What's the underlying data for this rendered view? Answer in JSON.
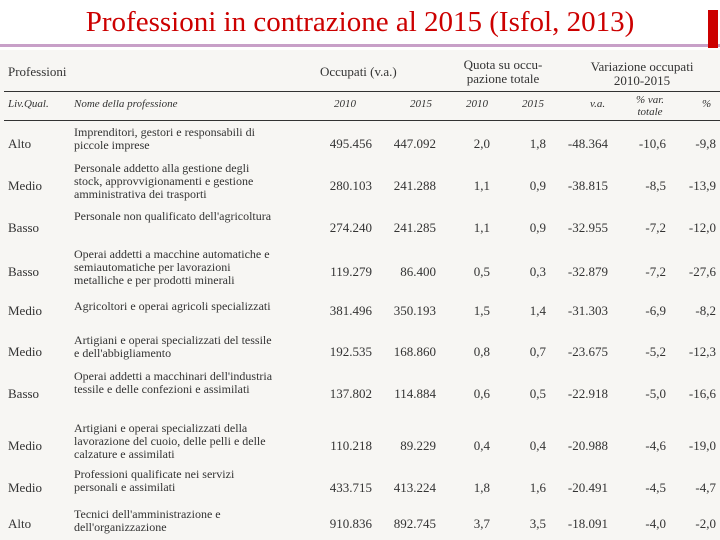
{
  "slide": {
    "title": "Professioni in contrazione al 2015 (Isfol, 2013)",
    "accent_color": "#cc0000"
  },
  "table": {
    "headers": {
      "professioni": "Professioni",
      "occupati": "Occupati (v.a.)",
      "quota_line1": "Quota su occu-",
      "quota_line2": "pazione totale",
      "variazione_line1": "Variazione occupati",
      "variazione_line2": "2010-2015"
    },
    "subheaders": {
      "liv_qual": "Liv.Qual.",
      "nome": "Nome della professione",
      "occ_2010": "2010",
      "occ_2015": "2015",
      "quota_2010": "2010",
      "quota_2015": "2015",
      "va": "v.a.",
      "var_tot_line1": "% var.",
      "var_tot_line2": "totale",
      "pct": "%"
    },
    "rows": [
      {
        "liv": "Alto",
        "name": "Imprenditori, gestori e responsabili di piccole imprese",
        "occ2010": "495.456",
        "occ2015": "447.092",
        "q2010": "2,0",
        "q2015": "1,8",
        "va": "-48.364",
        "vartot": "-10,6",
        "pct": "-9,8"
      },
      {
        "liv": "Medio",
        "name": "Personale addetto alla gestione degli stock, approvvigionamenti e gestione amministrativa dei trasporti",
        "occ2010": "280.103",
        "occ2015": "241.288",
        "q2010": "1,1",
        "q2015": "0,9",
        "va": "-38.815",
        "vartot": "-8,5",
        "pct": "-13,9"
      },
      {
        "liv": "Basso",
        "name": "Personale non qualificato dell'agricoltura",
        "occ2010": "274.240",
        "occ2015": "241.285",
        "q2010": "1,1",
        "q2015": "0,9",
        "va": "-32.955",
        "vartot": "-7,2",
        "pct": "-12,0"
      },
      {
        "liv": "Basso",
        "name": "Operai addetti a macchine automatiche e semiautomatiche per lavorazioni metalliche e per prodotti minerali",
        "occ2010": "119.279",
        "occ2015": "86.400",
        "q2010": "0,5",
        "q2015": "0,3",
        "va": "-32.879",
        "vartot": "-7,2",
        "pct": "-27,6"
      },
      {
        "liv": "Medio",
        "name": "Agricoltori e operai agricoli specializzati",
        "occ2010": "381.496",
        "occ2015": "350.193",
        "q2010": "1,5",
        "q2015": "1,4",
        "va": "-31.303",
        "vartot": "-6,9",
        "pct": "-8,2"
      },
      {
        "liv": "Medio",
        "name": "Artigiani e operai specializzati del tessile e dell'abbigliamento",
        "occ2010": "192.535",
        "occ2015": "168.860",
        "q2010": "0,8",
        "q2015": "0,7",
        "va": "-23.675",
        "vartot": "-5,2",
        "pct": "-12,3"
      },
      {
        "liv": "Basso",
        "name": "Operai addetti a macchinari dell'industria tessile e delle confezioni e assimilati",
        "occ2010": "137.802",
        "occ2015": "114.884",
        "q2010": "0,6",
        "q2015": "0,5",
        "va": "-22.918",
        "vartot": "-5,0",
        "pct": "-16,6"
      },
      {
        "liv": "Medio",
        "name": "Artigiani e operai specializzati della lavorazione del cuoio, delle pelli e delle calzature e assimilati",
        "occ2010": "110.218",
        "occ2015": "89.229",
        "q2010": "0,4",
        "q2015": "0,4",
        "va": "-20.988",
        "vartot": "-4,6",
        "pct": "-19,0"
      },
      {
        "liv": "Medio",
        "name": "Professioni qualificate nei servizi personali e assimilati",
        "occ2010": "433.715",
        "occ2015": "413.224",
        "q2010": "1,8",
        "q2015": "1,6",
        "va": "-20.491",
        "vartot": "-4,5",
        "pct": "-4,7"
      },
      {
        "liv": "Alto",
        "name": "Tecnici dell'amministrazione e dell'organizzazione",
        "occ2010": "910.836",
        "occ2015": "892.745",
        "q2010": "3,7",
        "q2015": "3,5",
        "va": "-18.091",
        "vartot": "-4,0",
        "pct": "-2,0"
      }
    ]
  }
}
